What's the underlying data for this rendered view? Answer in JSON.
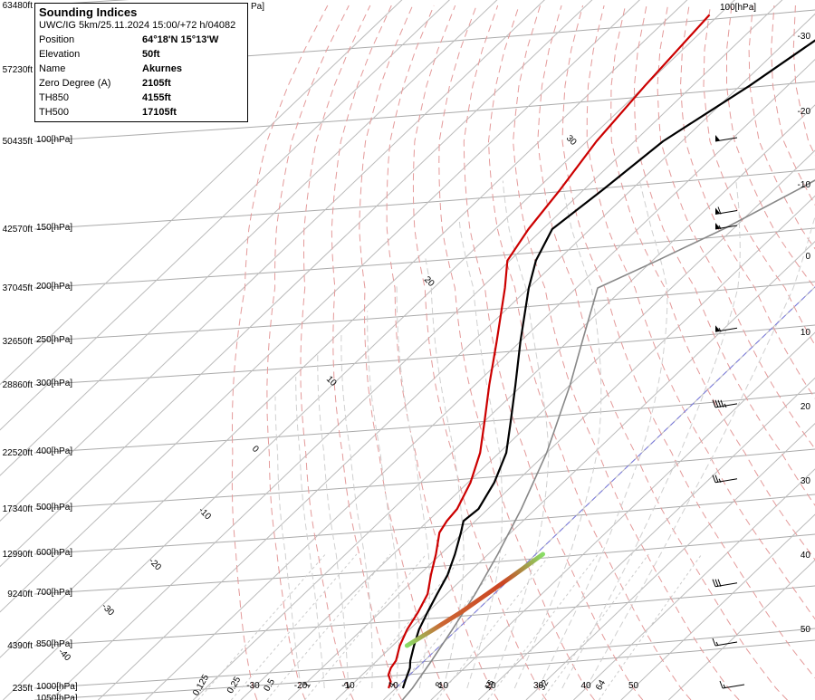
{
  "info": {
    "title": "Sounding Indices",
    "subtitle": "UWC/IG 5km/25.11.2024 15:00/+72 h/04082",
    "rows": [
      {
        "key": "Position",
        "value": "64°18'N 15°13'W"
      },
      {
        "key": "Elevation",
        "value": "50ft"
      },
      {
        "key": "Name",
        "value": "Akurnes"
      },
      {
        "key": "Zero Degree (A)",
        "value": "2105ft"
      },
      {
        "key": "TH850",
        "value": "4155ft"
      },
      {
        "key": "TH500",
        "value": "17105ft"
      }
    ]
  },
  "chart_data": {
    "type": "line",
    "top_right_pressure_label": "100[hPa]",
    "clipped_top_label": "Pa]",
    "pressure_levels": [
      {
        "height": "63480ft",
        "pressure": "",
        "hpa": 60
      },
      {
        "height": "57230ft",
        "pressure": "",
        "hpa": 75
      },
      {
        "height": "50435ft",
        "pressure": "100[hPa]",
        "hpa": 100
      },
      {
        "height": "42570ft",
        "pressure": "150[hPa]",
        "hpa": 150
      },
      {
        "height": "37045ft",
        "pressure": "200[hPa]",
        "hpa": 200
      },
      {
        "height": "32650ft",
        "pressure": "250[hPa]",
        "hpa": 250
      },
      {
        "height": "28860ft",
        "pressure": "300[hPa]",
        "hpa": 300
      },
      {
        "height": "22520ft",
        "pressure": "400[hPa]",
        "hpa": 400
      },
      {
        "height": "17340ft",
        "pressure": "500[hPa]",
        "hpa": 500
      },
      {
        "height": "12990ft",
        "pressure": "600[hPa]",
        "hpa": 600
      },
      {
        "height": "9240ft",
        "pressure": "700[hPa]",
        "hpa": 700
      },
      {
        "height": "4390ft",
        "pressure": "850[hPa]",
        "hpa": 850
      },
      {
        "height": "235ft",
        "pressure": "1000[hPa]",
        "hpa": 1000
      },
      {
        "height": "",
        "pressure": "1050[hPa]",
        "hpa": 1050
      }
    ],
    "temperature_ticks": [
      "-30",
      "-20",
      "-10",
      "0",
      "10",
      "20",
      "30",
      "40",
      "50"
    ],
    "temperature_tick_values": [
      -30,
      -20,
      -10,
      0,
      10,
      20,
      30,
      40,
      50
    ],
    "mixing_ratio_ticks": [
      "0.125",
      "0.25",
      "0.5",
      "1",
      "2",
      "4",
      "8",
      "16",
      "32",
      "64"
    ],
    "mixing_ratio_values": [
      0.125,
      0.25,
      0.5,
      1,
      2,
      4,
      8,
      16,
      32,
      64
    ],
    "right_side_labels": [
      "-30",
      "-20",
      "-10",
      "0",
      "10",
      "20",
      "30",
      "40",
      "50"
    ],
    "isotherm_labels": [
      "30",
      "20",
      "10",
      "0",
      "-10",
      "-20",
      "-30",
      "-40"
    ],
    "series": [
      {
        "name": "",
        "color": "#cc0000",
        "points": [
          {
            "p": 1000,
            "t": -1.5
          },
          {
            "p": 975,
            "t": -2.5
          },
          {
            "p": 950,
            "t": -4.5
          },
          {
            "p": 925,
            "t": -5.5
          },
          {
            "p": 900,
            "t": -6
          },
          {
            "p": 850,
            "t": -8.5
          },
          {
            "p": 800,
            "t": -10.5
          },
          {
            "p": 750,
            "t": -12
          },
          {
            "p": 700,
            "t": -14
          },
          {
            "p": 650,
            "t": -17.5
          },
          {
            "p": 600,
            "t": -21
          },
          {
            "p": 550,
            "t": -25
          },
          {
            "p": 525,
            "t": -26
          },
          {
            "p": 500,
            "t": -26.5
          },
          {
            "p": 450,
            "t": -29.5
          },
          {
            "p": 400,
            "t": -34
          },
          {
            "p": 350,
            "t": -40
          },
          {
            "p": 300,
            "t": -47
          },
          {
            "p": 250,
            "t": -55
          },
          {
            "p": 200,
            "t": -65
          },
          {
            "p": 175,
            "t": -70.5
          },
          {
            "p": 150,
            "t": -73
          },
          {
            "p": 125,
            "t": -75
          },
          {
            "p": 100,
            "t": -78
          },
          {
            "p": 80,
            "t": -80
          },
          {
            "p": 62,
            "t": -82
          }
        ]
      },
      {
        "name": "",
        "color": "#000000",
        "points": [
          {
            "p": 1000,
            "t": 1.5
          },
          {
            "p": 975,
            "t": 0.5
          },
          {
            "p": 950,
            "t": -0.5
          },
          {
            "p": 925,
            "t": -1.5
          },
          {
            "p": 900,
            "t": -3
          },
          {
            "p": 850,
            "t": -5.5
          },
          {
            "p": 800,
            "t": -8
          },
          {
            "p": 750,
            "t": -10
          },
          {
            "p": 700,
            "t": -12
          },
          {
            "p": 650,
            "t": -14
          },
          {
            "p": 600,
            "t": -17
          },
          {
            "p": 550,
            "t": -20.5
          },
          {
            "p": 525,
            "t": -22.5
          },
          {
            "p": 500,
            "t": -22
          },
          {
            "p": 450,
            "t": -24.5
          },
          {
            "p": 400,
            "t": -28.5
          },
          {
            "p": 350,
            "t": -34.5
          },
          {
            "p": 300,
            "t": -41.5
          },
          {
            "p": 250,
            "t": -50
          },
          {
            "p": 200,
            "t": -60
          },
          {
            "p": 175,
            "t": -64.5
          },
          {
            "p": 150,
            "t": -68
          },
          {
            "p": 125,
            "t": -66
          },
          {
            "p": 100,
            "t": -64
          },
          {
            "p": 80,
            "t": -58
          },
          {
            "p": 62,
            "t": -52
          }
        ]
      },
      {
        "name": "",
        "color": "#888888",
        "points": [
          {
            "p": 1050,
            "t": 4
          },
          {
            "p": 1000,
            "t": 3.5
          },
          {
            "p": 900,
            "t": 1.5
          },
          {
            "p": 800,
            "t": -1
          },
          {
            "p": 700,
            "t": -4
          },
          {
            "p": 600,
            "t": -8
          },
          {
            "p": 500,
            "t": -13
          },
          {
            "p": 400,
            "t": -20
          },
          {
            "p": 300,
            "t": -30
          },
          {
            "p": 250,
            "t": -37
          },
          {
            "p": 200,
            "t": -45.5
          },
          {
            "p": 175,
            "t": -39
          },
          {
            "p": 150,
            "t": -32
          },
          {
            "p": 125,
            "t": -25
          },
          {
            "p": 100,
            "t": -17
          },
          {
            "p": 80,
            "t": -9
          },
          {
            "p": 60,
            "t": 0
          }
        ]
      }
    ],
    "lifted_segment": {
      "points": [
        {
          "p": 850,
          "t": -7
        },
        {
          "p": 800,
          "t": -5
        },
        {
          "p": 750,
          "t": -3
        },
        {
          "p": 700,
          "t": -1.5
        },
        {
          "p": 650,
          "t": 0
        },
        {
          "p": 600,
          "t": 1.5
        }
      ]
    },
    "wind_barbs": [
      {
        "hpa": 100,
        "speed": 50
      },
      {
        "hpa": 140,
        "speed": 60
      },
      {
        "hpa": 150,
        "speed": 55
      },
      {
        "hpa": 240,
        "speed": 55
      },
      {
        "hpa": 330,
        "speed": 45
      },
      {
        "hpa": 450,
        "speed": 25
      },
      {
        "hpa": 680,
        "speed": 30
      },
      {
        "hpa": 850,
        "speed": 15
      },
      {
        "hpa": 1000,
        "speed": 15
      }
    ],
    "colors": {
      "isobar": "#aaaaaa",
      "isotherm": "#bbbbbb",
      "dry_adiabat": "#e49a9a",
      "moist_adiabat": "#d0d0d0",
      "mixing_ratio": "#cccccc",
      "freezing": "#7777dd"
    }
  }
}
